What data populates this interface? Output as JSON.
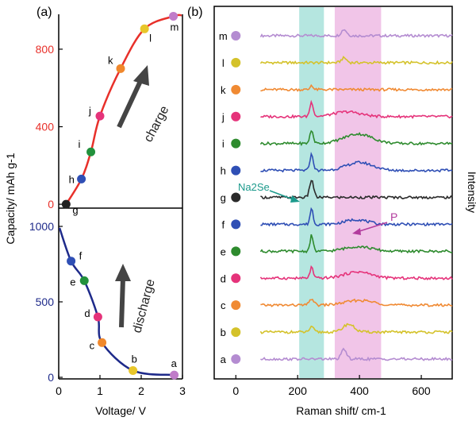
{
  "chart_data": [
    {
      "panel_label": "(a)",
      "type": "line",
      "xlabel": "Voltage/ V",
      "ylabel": "Capacity/ mAh g-1",
      "xlim": [
        0.0,
        3.0
      ],
      "xticks": [
        "0",
        "1",
        "2",
        "3"
      ],
      "charge": {
        "name": "charge",
        "color": "#e8302a",
        "ylim": [
          -20,
          980
        ],
        "yticks": [
          "0",
          "400",
          "800"
        ],
        "annotation": "charge",
        "points": [
          {
            "label": "g",
            "x": 0.18,
            "y": 0,
            "color": "#222222"
          },
          {
            "label": "h",
            "x": 0.55,
            "y": 130,
            "color": "#2f4fb5"
          },
          {
            "label": "i",
            "x": 0.78,
            "y": 270,
            "color": "#22913c"
          },
          {
            "label": "j",
            "x": 1.0,
            "y": 455,
            "color": "#e5337a"
          },
          {
            "label": "k",
            "x": 1.5,
            "y": 700,
            "color": "#f0882c"
          },
          {
            "label": "l",
            "x": 2.08,
            "y": 905,
            "color": "#e8c62a"
          },
          {
            "label": "m",
            "x": 2.78,
            "y": 970,
            "color": "#c07cc9"
          }
        ]
      },
      "discharge": {
        "name": "discharge",
        "color": "#1e2a8a",
        "ylim": [
          0,
          1000
        ],
        "yticks": [
          "0",
          "500",
          "1000"
        ],
        "annotation": "discharge",
        "points": [
          {
            "label": "f",
            "x": 0.3,
            "y": 770,
            "color": "#2f4fb5"
          },
          {
            "label": "e",
            "x": 0.62,
            "y": 640,
            "color": "#22913c"
          },
          {
            "label": "d",
            "x": 0.95,
            "y": 400,
            "color": "#e5337a"
          },
          {
            "label": "c",
            "x": 1.05,
            "y": 230,
            "color": "#f0882c"
          },
          {
            "label": "b",
            "x": 1.8,
            "y": 45,
            "color": "#e8c62a"
          },
          {
            "label": "a",
            "x": 2.8,
            "y": 15,
            "color": "#c07cc9"
          }
        ]
      }
    },
    {
      "panel_label": "(b)",
      "type": "line",
      "xlabel": "Raman shift/ cm-1",
      "ylabel": "Intensity",
      "xlim": [
        -70,
        700
      ],
      "xticks": [
        "0",
        "200",
        "400",
        "600"
      ],
      "x_range_of_spectra": [
        80,
        700
      ],
      "bands": [
        {
          "name": "Na2Se band",
          "from": 205,
          "to": 285,
          "color": "#8ed9cf"
        },
        {
          "name": "P band",
          "from": 320,
          "to": 470,
          "color": "#e9a6dc"
        }
      ],
      "annotations": [
        {
          "text": "Na2Se",
          "color": "#1c9a8c"
        },
        {
          "text": "P",
          "color": "#b23b9d"
        }
      ],
      "series": [
        {
          "name": "m",
          "color": "#b48cd1",
          "features": [
            [
              350,
              12,
              8
            ]
          ]
        },
        {
          "name": "l",
          "color": "#d4c22a",
          "features": [
            [
              350,
              12,
              6
            ]
          ]
        },
        {
          "name": "k",
          "color": "#f08a33",
          "features": [
            [
              245,
              6,
              6
            ]
          ]
        },
        {
          "name": "j",
          "color": "#e5337a",
          "features": [
            [
              245,
              8,
              18
            ],
            [
              360,
              60,
              6
            ]
          ]
        },
        {
          "name": "i",
          "color": "#2e8b2e",
          "features": [
            [
              245,
              8,
              16
            ],
            [
              395,
              65,
              12
            ]
          ]
        },
        {
          "name": "h",
          "color": "#2f4fb5",
          "features": [
            [
              245,
              8,
              20
            ],
            [
              400,
              60,
              10
            ]
          ]
        },
        {
          "name": "g",
          "color": "#2a2a2a",
          "features": [
            [
              245,
              9,
              22
            ]
          ]
        },
        {
          "name": "f",
          "color": "#2f4fb5",
          "features": [
            [
              245,
              7,
              20
            ],
            [
              390,
              50,
              6
            ]
          ]
        },
        {
          "name": "e",
          "color": "#2e8b2e",
          "features": [
            [
              245,
              7,
              20
            ],
            [
              395,
              60,
              6
            ]
          ]
        },
        {
          "name": "d",
          "color": "#e5337a",
          "features": [
            [
              245,
              7,
              14
            ],
            [
              395,
              60,
              8
            ]
          ]
        },
        {
          "name": "c",
          "color": "#f08a33",
          "features": [
            [
              245,
              10,
              8
            ],
            [
              400,
              65,
              6
            ]
          ]
        },
        {
          "name": "b",
          "color": "#d4c22a",
          "features": [
            [
              245,
              10,
              6
            ],
            [
              365,
              25,
              10
            ]
          ]
        },
        {
          "name": "a",
          "color": "#b48cd1",
          "features": [
            [
              350,
              12,
              12
            ]
          ]
        }
      ]
    }
  ]
}
